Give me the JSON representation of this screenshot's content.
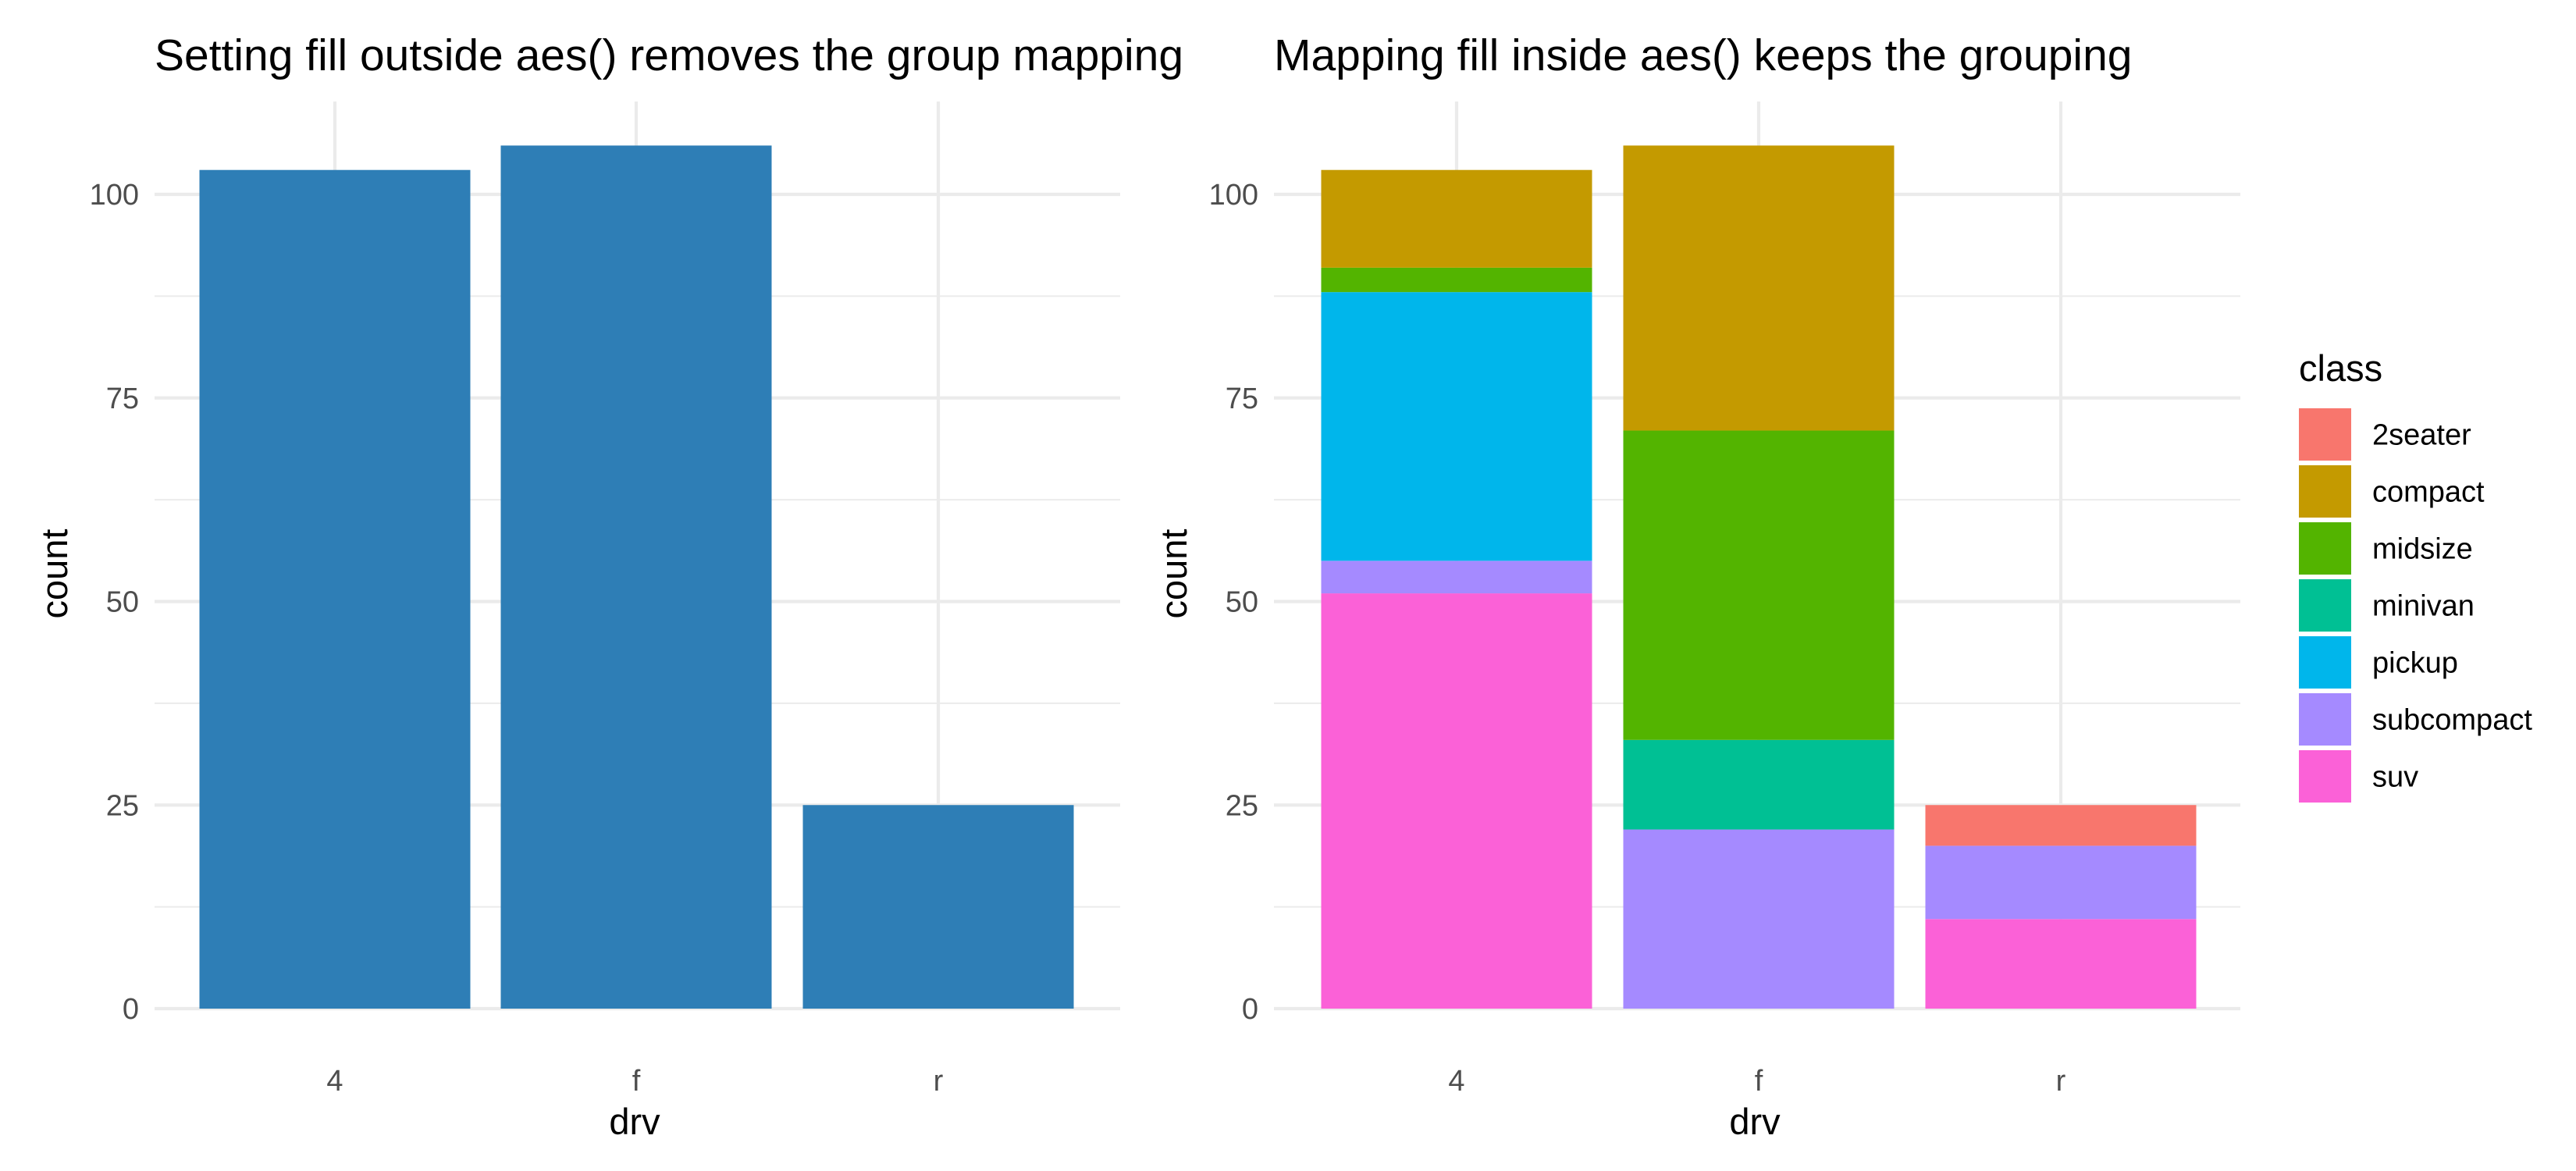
{
  "chart_data": [
    {
      "type": "bar",
      "title": "Setting fill outside aes() removes the group mapping",
      "xlabel": "drv",
      "ylabel": "count",
      "categories": [
        "4",
        "f",
        "r"
      ],
      "values": [
        103,
        106,
        25
      ],
      "fill": "#2E7EB6",
      "ylim": [
        0,
        110
      ],
      "yticks": [
        0,
        25,
        50,
        75,
        100
      ],
      "grid": true
    },
    {
      "type": "bar",
      "stacked": true,
      "title": "Mapping fill inside aes() keeps the grouping",
      "xlabel": "drv",
      "ylabel": "count",
      "categories": [
        "4",
        "f",
        "r"
      ],
      "ylim": [
        0,
        110
      ],
      "yticks": [
        0,
        25,
        50,
        75,
        100
      ],
      "grid": true,
      "legend_title": "class",
      "legend_position": "right",
      "series": [
        {
          "name": "2seater",
          "color": "#F8766D",
          "values": [
            0,
            0,
            5
          ]
        },
        {
          "name": "compact",
          "color": "#C49A00",
          "values": [
            12,
            35,
            0
          ]
        },
        {
          "name": "midsize",
          "color": "#53B400",
          "values": [
            3,
            38,
            0
          ]
        },
        {
          "name": "minivan",
          "color": "#00C094",
          "values": [
            0,
            11,
            0
          ]
        },
        {
          "name": "pickup",
          "color": "#00B6EB",
          "values": [
            33,
            0,
            0
          ]
        },
        {
          "name": "subcompact",
          "color": "#A58AFF",
          "values": [
            4,
            22,
            9
          ]
        },
        {
          "name": "suv",
          "color": "#FB61D7",
          "values": [
            51,
            0,
            11
          ]
        }
      ]
    }
  ]
}
